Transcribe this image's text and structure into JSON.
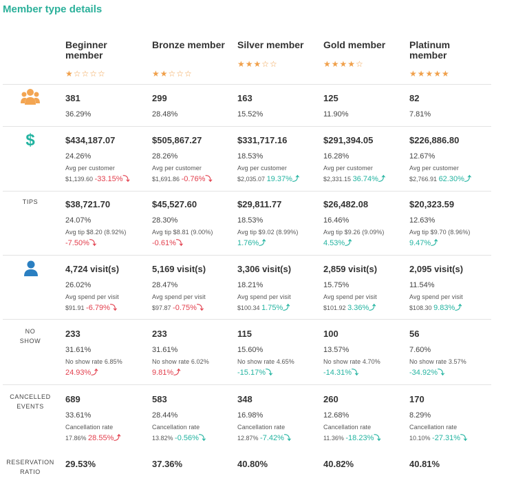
{
  "title": "Member type details",
  "tiers": [
    {
      "name": "Beginner member",
      "stars": "★☆☆☆☆"
    },
    {
      "name": "Bronze member",
      "stars": "★★☆☆☆"
    },
    {
      "name": "Silver member",
      "stars": "★★★☆☆"
    },
    {
      "name": "Gold member",
      "stars": "★★★★☆"
    },
    {
      "name": "Platinum member",
      "stars": "★★★★★"
    }
  ],
  "rows": {
    "members": {
      "icon": "members-group-icon",
      "cells": [
        {
          "value": "381",
          "pct": "36.29%"
        },
        {
          "value": "299",
          "pct": "28.48%"
        },
        {
          "value": "163",
          "pct": "15.52%"
        },
        {
          "value": "125",
          "pct": "11.90%"
        },
        {
          "value": "82",
          "pct": "7.81%"
        }
      ]
    },
    "revenue": {
      "icon": "dollar-icon",
      "cells": [
        {
          "value": "$434,187.07",
          "pct": "24.26%",
          "label": "Avg per customer",
          "base": "$1,139.60",
          "change": "-33.15%",
          "dir": "down"
        },
        {
          "value": "$505,867.27",
          "pct": "28.26%",
          "label": "Avg per customer",
          "base": "$1,691.86",
          "change": "-0.76%",
          "dir": "down"
        },
        {
          "value": "$331,717.16",
          "pct": "18.53%",
          "label": "Avg per customer",
          "base": "$2,035.07",
          "change": "19.37%",
          "dir": "up"
        },
        {
          "value": "$291,394.05",
          "pct": "16.28%",
          "label": "Avg per customer",
          "base": "$2,331.15",
          "change": "36.74%",
          "dir": "up"
        },
        {
          "value": "$226,886.80",
          "pct": "12.67%",
          "label": "Avg per customer",
          "base": "$2,766.91",
          "change": "62.30%",
          "dir": "up"
        }
      ]
    },
    "tips": {
      "label": "TIPS",
      "cells": [
        {
          "value": "$38,721.70",
          "pct": "24.07%",
          "sub": "Avg tip $8.20 (8.92%)",
          "change": "-7.50%",
          "dir": "down"
        },
        {
          "value": "$45,527.60",
          "pct": "28.30%",
          "sub": "Avg tip $8.81 (9.00%)",
          "change": "-0.61%",
          "dir": "down"
        },
        {
          "value": "$29,811.77",
          "pct": "18.53%",
          "sub": "Avg tip $9.02 (8.99%)",
          "change": "1.76%",
          "dir": "up"
        },
        {
          "value": "$26,482.08",
          "pct": "16.46%",
          "sub": "Avg tip $9.26 (9.09%)",
          "change": "4.53%",
          "dir": "up"
        },
        {
          "value": "$20,323.59",
          "pct": "12.63%",
          "sub": "Avg tip $9.70 (8.96%)",
          "change": "9.47%",
          "dir": "up"
        }
      ]
    },
    "visits": {
      "icon": "person-icon",
      "cells": [
        {
          "value": "4,724 visit(s)",
          "pct": "26.02%",
          "label": "Avg spend per visit",
          "base": "$91.91",
          "change": "-6.79%",
          "dir": "down"
        },
        {
          "value": "5,169 visit(s)",
          "pct": "28.47%",
          "label": "Avg spend per visit",
          "base": "$97.87",
          "change": "-0.75%",
          "dir": "down"
        },
        {
          "value": "3,306 visit(s)",
          "pct": "18.21%",
          "label": "Avg spend per visit",
          "base": "$100.34",
          "change": "1.75%",
          "dir": "up"
        },
        {
          "value": "2,859 visit(s)",
          "pct": "15.75%",
          "label": "Avg spend per visit",
          "base": "$101.92",
          "change": "3.36%",
          "dir": "up"
        },
        {
          "value": "2,095 visit(s)",
          "pct": "11.54%",
          "label": "Avg spend per visit",
          "base": "$108.30",
          "change": "9.83%",
          "dir": "up"
        }
      ]
    },
    "noshow": {
      "label_1": "NO",
      "label_2": "SHOW",
      "cells": [
        {
          "value": "233",
          "pct": "31.61%",
          "sub": "No show rate 6.85%",
          "change": "24.93%",
          "dir": "up",
          "tone": "neg"
        },
        {
          "value": "233",
          "pct": "31.61%",
          "sub": "No show rate 6.02%",
          "change": "9.81%",
          "dir": "up",
          "tone": "neg"
        },
        {
          "value": "115",
          "pct": "15.60%",
          "sub": "No show rate 4.65%",
          "change": "-15.17%",
          "dir": "down",
          "tone": "pos"
        },
        {
          "value": "100",
          "pct": "13.57%",
          "sub": "No show rate 4.70%",
          "change": "-14.31%",
          "dir": "down",
          "tone": "pos"
        },
        {
          "value": "56",
          "pct": "7.60%",
          "sub": "No show rate 3.57%",
          "change": "-34.92%",
          "dir": "down",
          "tone": "pos"
        }
      ]
    },
    "cancelled": {
      "label_1": "CANCELLED",
      "label_2": "EVENTS",
      "cells": [
        {
          "value": "689",
          "pct": "33.61%",
          "label": "Cancellation rate",
          "base": "17.86%",
          "change": "28.55%",
          "dir": "up",
          "tone": "neg"
        },
        {
          "value": "583",
          "pct": "28.44%",
          "label": "Cancellation rate",
          "base": "13.82%",
          "change": "-0.56%",
          "dir": "down",
          "tone": "pos"
        },
        {
          "value": "348",
          "pct": "16.98%",
          "label": "Cancellation rate",
          "base": "12.87%",
          "change": "-7.42%",
          "dir": "down",
          "tone": "pos"
        },
        {
          "value": "260",
          "pct": "12.68%",
          "label": "Cancellation rate",
          "base": "11.36%",
          "change": "-18.23%",
          "dir": "down",
          "tone": "pos"
        },
        {
          "value": "170",
          "pct": "8.29%",
          "label": "Cancellation rate",
          "base": "10.10%",
          "change": "-27.31%",
          "dir": "down",
          "tone": "pos"
        }
      ]
    },
    "reservation": {
      "label_1": "RESERVATION",
      "label_2": "RATIO",
      "cells": [
        {
          "value": "29.53%"
        },
        {
          "value": "37.36%"
        },
        {
          "value": "40.80%"
        },
        {
          "value": "40.82%"
        },
        {
          "value": "40.81%"
        }
      ]
    }
  },
  "colors": {
    "accent": "#2bb09a",
    "star": "#f0a04b",
    "negative": "#e23d4b",
    "positive": "#22b3a0",
    "icon_blue": "#2a7fc1",
    "icon_orange": "#f3a552"
  }
}
